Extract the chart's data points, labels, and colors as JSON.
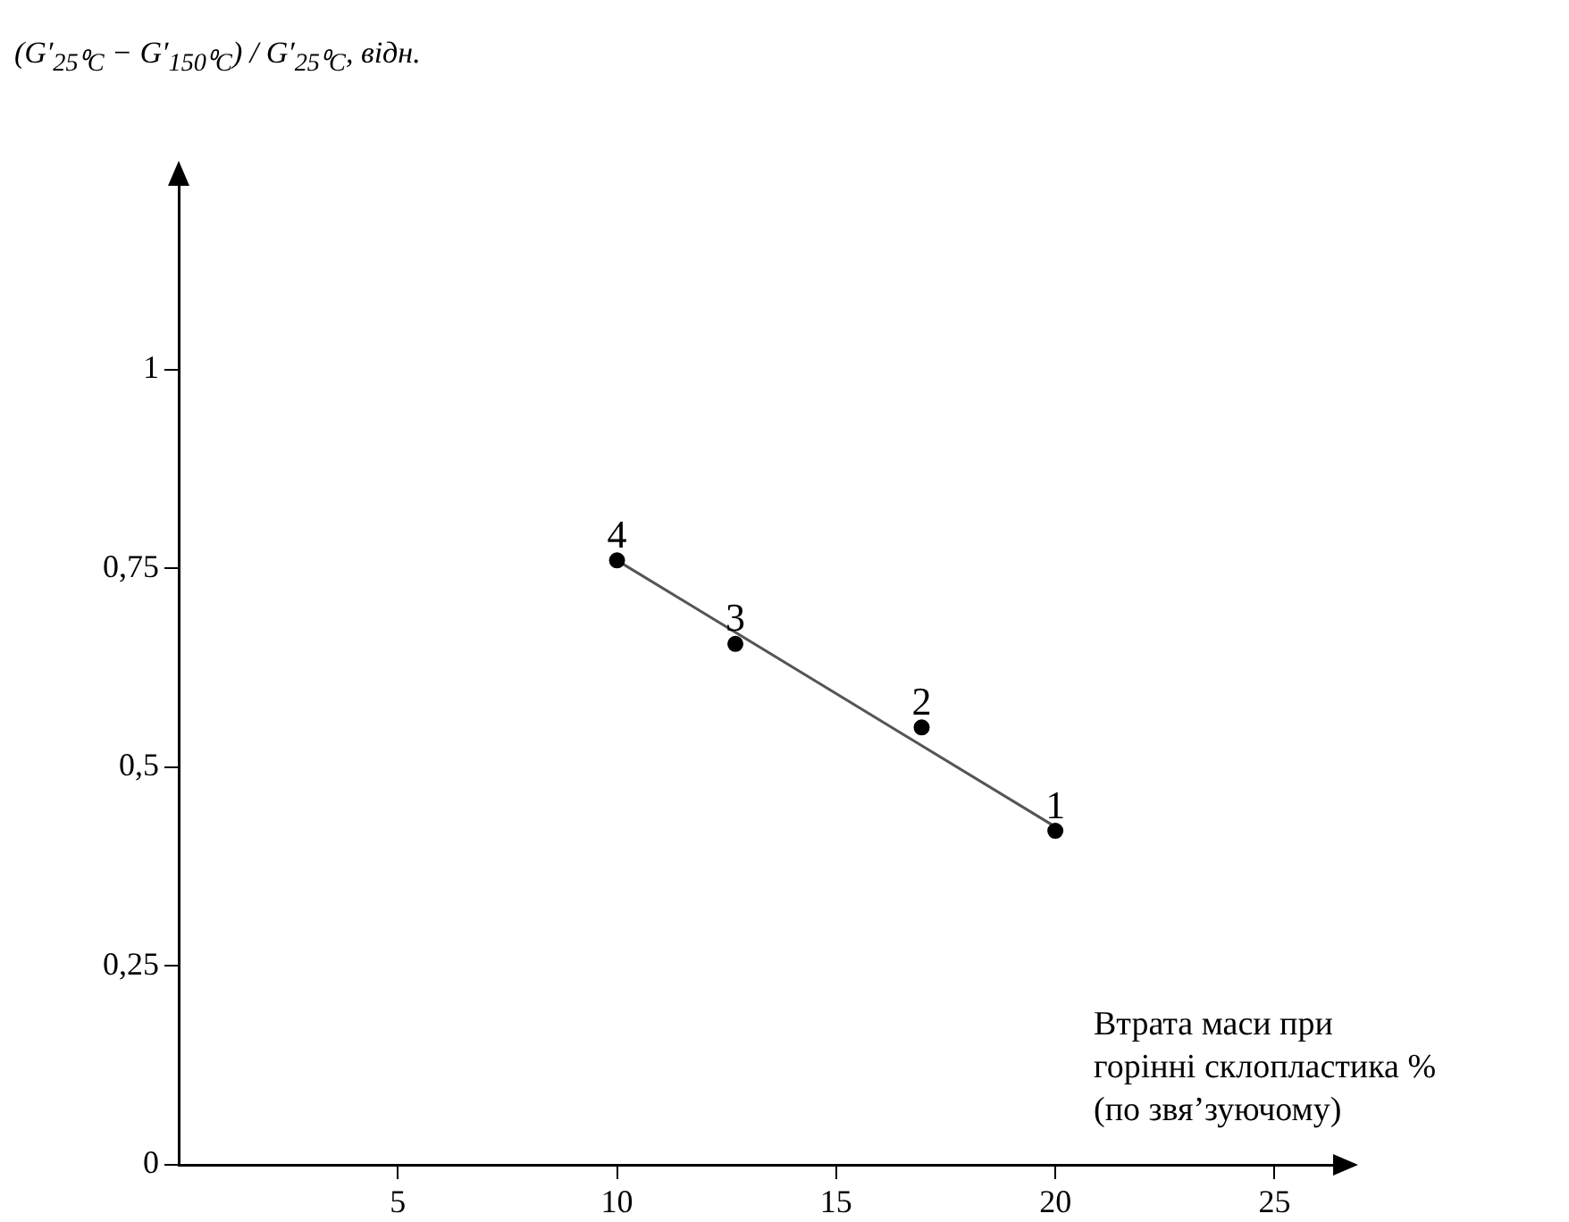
{
  "chart_data": {
    "type": "scatter",
    "ylabel": "(G′$_{25⁰C}$ − G′$_{150⁰C}$) / G′$_{25⁰C}$, відн.",
    "xlabel": "Втрата маси при\nгорінні склопластика %\n(по звя’зуючому)",
    "x": [
      20,
      16.95,
      12.7,
      10
    ],
    "series": [
      {
        "color": "#000000",
        "marker": "circle",
        "values": [
          0.42,
          0.55,
          0.655,
          0.76
        ]
      },
      {
        "type": "line",
        "color": "#555555",
        "marker": "none",
        "x": [
          10,
          20
        ],
        "values": [
          0.76,
          0.425
        ]
      }
    ],
    "annotations": [
      {
        "text": "1",
        "x": 20,
        "y": 0.42
      },
      {
        "text": "2",
        "x": 16.95,
        "y": 0.55
      },
      {
        "text": "3",
        "x": 12.7,
        "y": 0.655
      },
      {
        "text": "4",
        "x": 10,
        "y": 0.76
      }
    ],
    "xlim": [
      0,
      26.5
    ],
    "xticks": [
      5,
      10,
      15,
      20,
      25
    ],
    "ylim": [
      0,
      1.24
    ],
    "yticks": [
      0,
      {
        "value": 0.25,
        "label": "0,25"
      },
      {
        "value": 0.5,
        "label": "0,5"
      },
      {
        "value": 0.75,
        "label": "0,75"
      },
      1
    ],
    "grid": false,
    "legend": false
  }
}
